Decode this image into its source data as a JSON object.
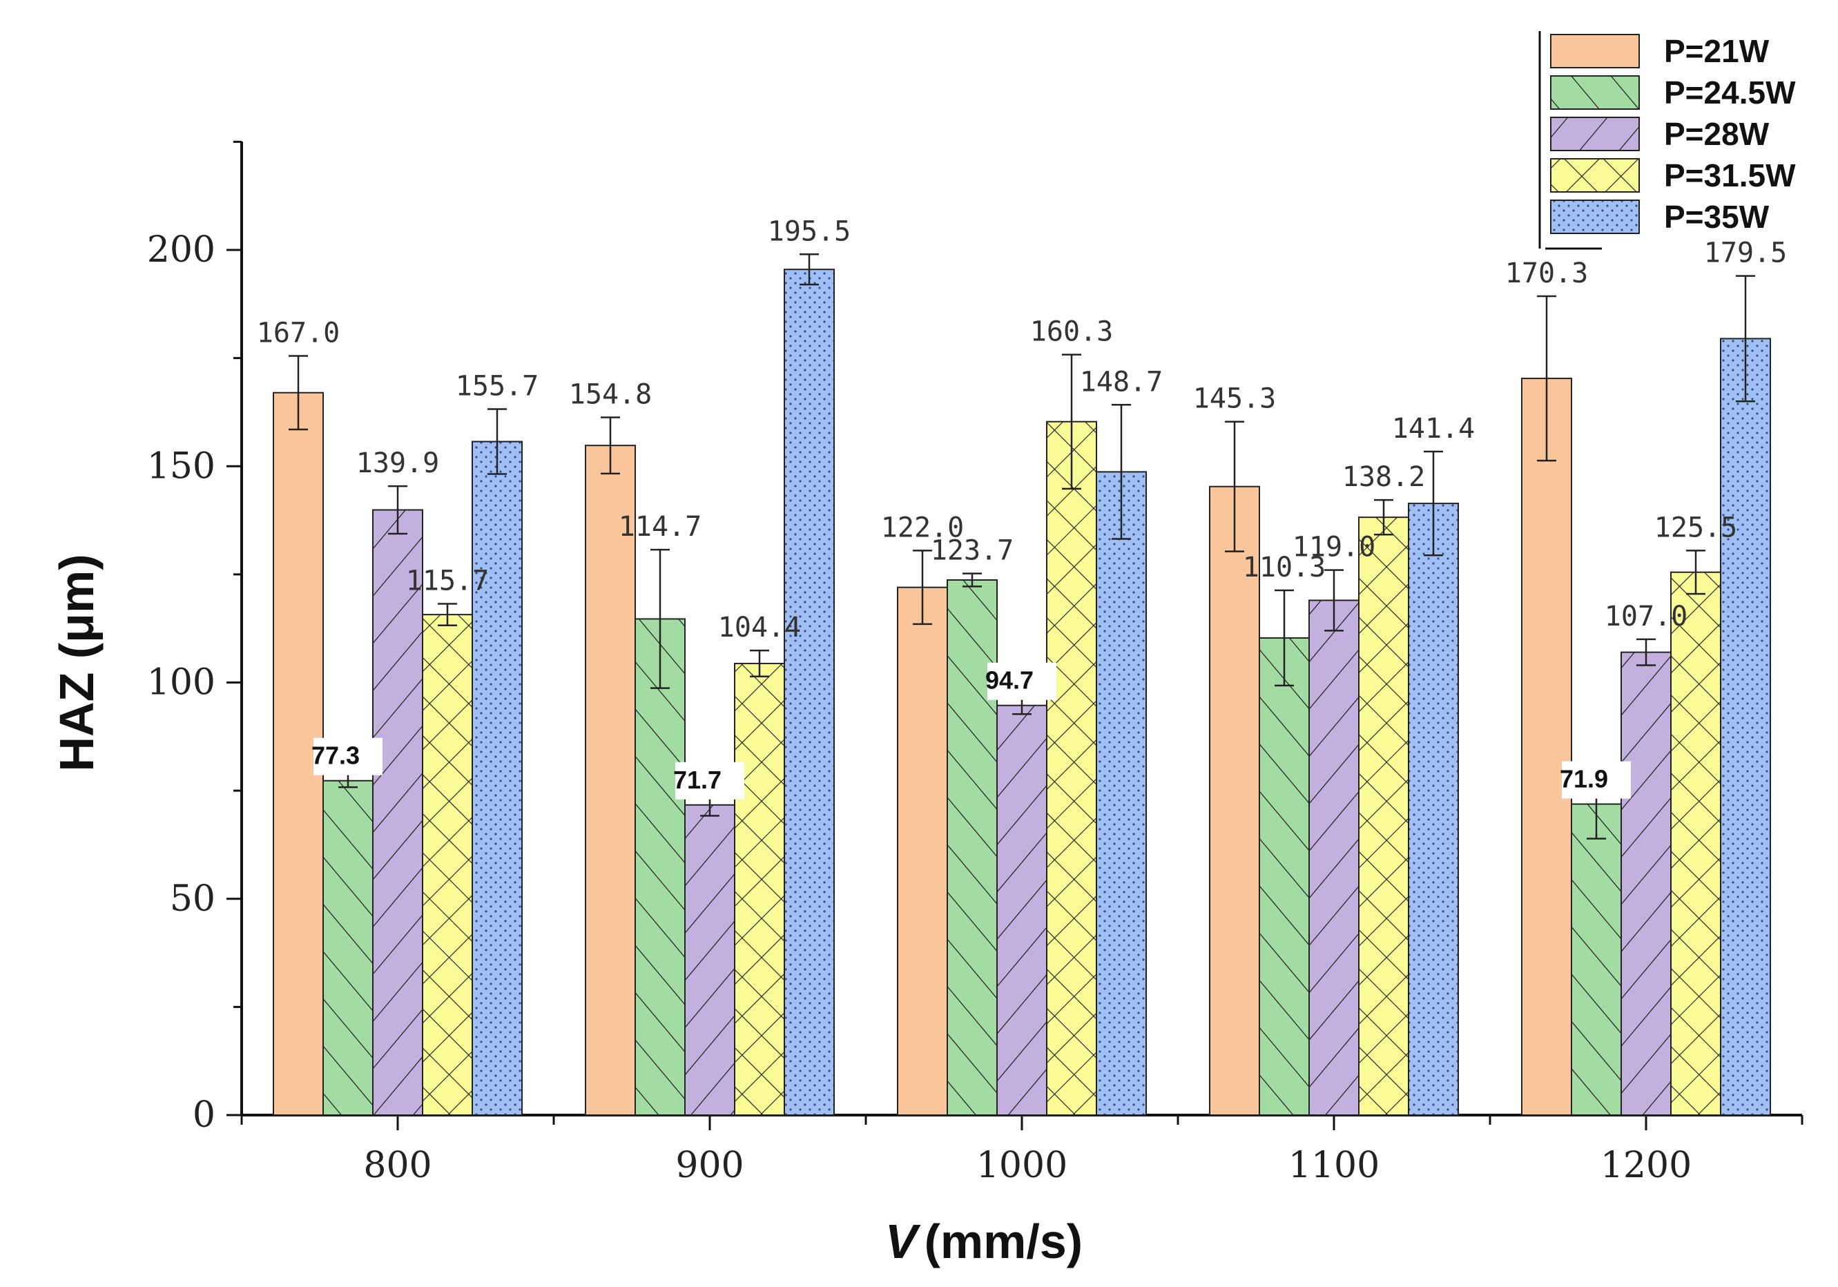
{
  "chart_data": {
    "type": "bar",
    "title": "",
    "xlabel_italic": "V",
    "xlabel_unit": "(mm/s)",
    "ylabel": "HAZ (μm)",
    "categories": [
      "800",
      "900",
      "1000",
      "1100",
      "1200"
    ],
    "ylim": [
      0,
      225
    ],
    "yticks": [
      "0",
      "50",
      "100",
      "150",
      "200"
    ],
    "series": [
      {
        "name": "P=21W",
        "color": "#f9c59b",
        "pattern": "none",
        "values": [
          167.0,
          154.8,
          122.0,
          145.3,
          170.3
        ],
        "labels": [
          "167.0",
          "154.8",
          "122.0",
          "145.3",
          "170.3"
        ],
        "errors": [
          8.5,
          6.5,
          8.5,
          15.0,
          19.0
        ]
      },
      {
        "name": "P=24.5W",
        "color": "#a3dca3",
        "pattern": "diag-right",
        "values": [
          77.3,
          114.7,
          123.7,
          110.3,
          71.9
        ],
        "labels": [
          "77.3",
          "114.7",
          "123.7",
          "110.3",
          "71.9"
        ],
        "errors": [
          1.5,
          16.0,
          1.5,
          11.0,
          8.0
        ]
      },
      {
        "name": "P=28W",
        "color": "#c4b0de",
        "pattern": "diag-left",
        "values": [
          139.9,
          71.7,
          94.7,
          119.0,
          107.0
        ],
        "labels": [
          "139.9",
          "71.7",
          "94.7",
          "119.0",
          "107.0"
        ],
        "errors": [
          5.5,
          2.5,
          2.0,
          7.0,
          3.0
        ]
      },
      {
        "name": "P=31.5W",
        "color": "#fafa96",
        "pattern": "cross",
        "values": [
          115.7,
          104.4,
          160.3,
          138.2,
          125.5
        ],
        "labels": [
          "115.7",
          "104.4",
          "160.3",
          "138.2",
          "125.5"
        ],
        "errors": [
          2.5,
          3.0,
          15.5,
          4.0,
          5.0
        ]
      },
      {
        "name": "P=35W",
        "color": "#9fbff5",
        "pattern": "dots",
        "values": [
          155.7,
          195.5,
          148.7,
          141.4,
          179.5
        ],
        "labels": [
          "155.7",
          "195.5",
          "148.7",
          "141.4",
          "179.5"
        ],
        "errors": [
          7.5,
          3.5,
          15.5,
          12.0,
          14.5
        ]
      }
    ],
    "boxed_labels": [
      "77.3",
      "71.7",
      "94.7",
      "71.9"
    ],
    "legend": [
      "P=21W",
      "P=24.5W",
      "P=28W",
      "P=31.5W",
      "P=35W"
    ],
    "legend_position": "top-right",
    "grid": false
  }
}
